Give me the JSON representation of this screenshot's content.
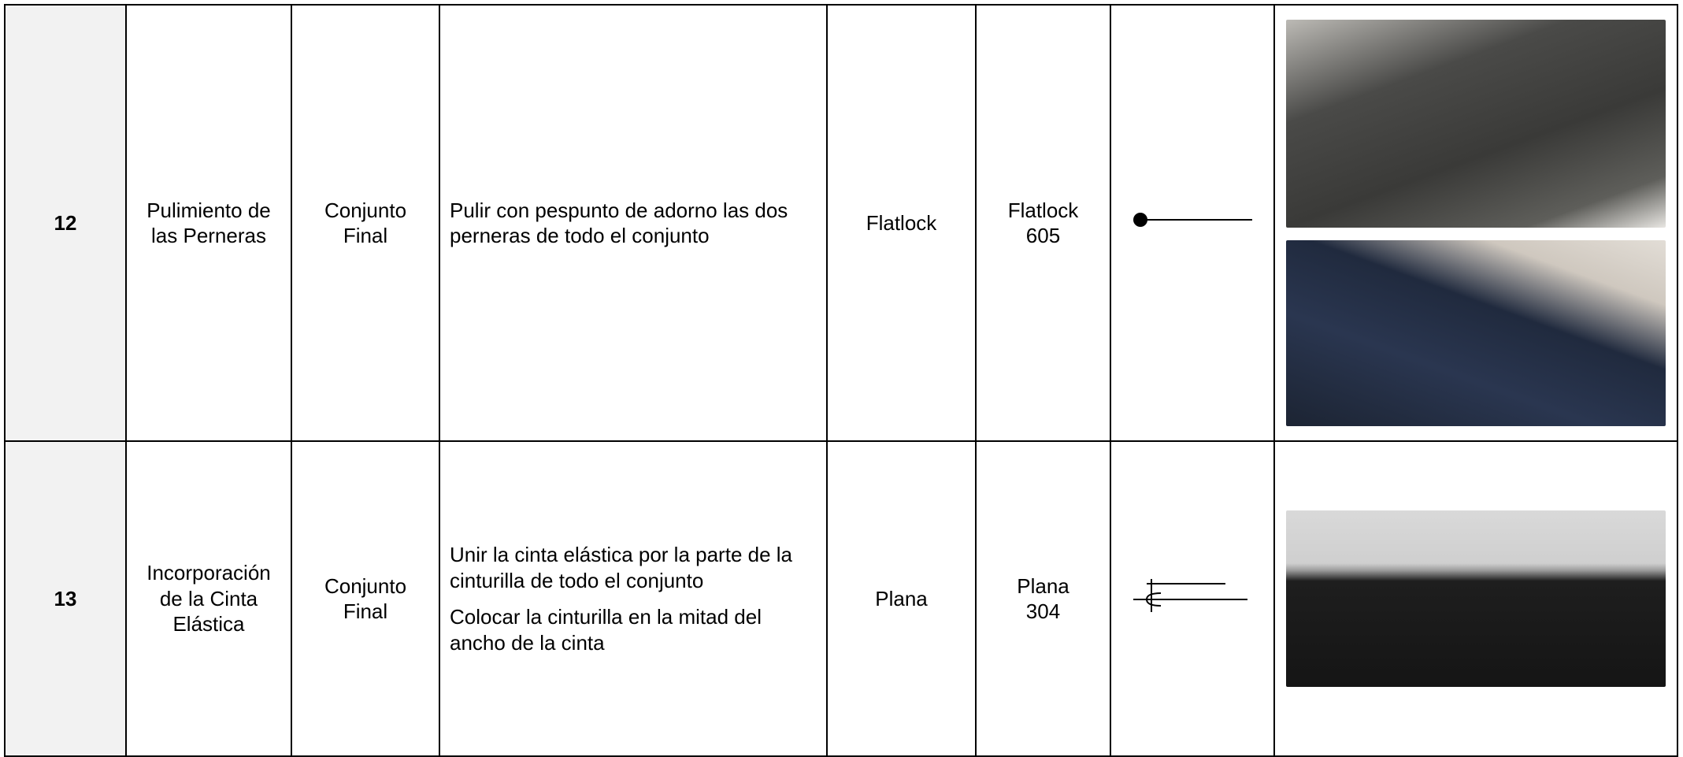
{
  "table": {
    "rows": [
      {
        "number": "12",
        "operation": "Pulimiento de las Perneras",
        "section": [
          "Conjunto",
          "Final"
        ],
        "description": [
          "Pulir con pespunto de adorno las dos perneras de todo el conjunto"
        ],
        "machine": "Flatlock",
        "stitch": [
          "Flatlock",
          "605"
        ]
      },
      {
        "number": "13",
        "operation": "Incorporación de la Cinta Elástica",
        "section": [
          "Conjunto",
          "Final"
        ],
        "description": [
          "Unir la cinta elástica por la parte de la cinturilla de todo el conjunto",
          "Colocar la cinturilla en la mitad del ancho de la cinta"
        ],
        "machine": "Plana",
        "stitch": [
          "Plana",
          "304"
        ]
      }
    ]
  }
}
